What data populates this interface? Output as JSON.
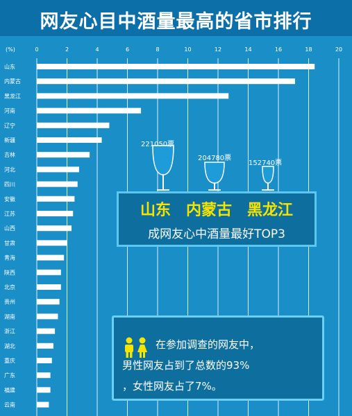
{
  "title": "网友心目中酒量最高的省市排行",
  "chart_data": {
    "type": "bar",
    "orientation": "horizontal",
    "unit_label": "(%)",
    "xlim": [
      0,
      20
    ],
    "ticks": [
      0,
      2,
      4,
      6,
      8,
      10,
      12,
      14,
      16,
      18,
      20
    ],
    "grid": true,
    "categories": [
      "山东",
      "内蒙古",
      "黑龙江",
      "河南",
      "辽宁",
      "新疆",
      "吉林",
      "河北",
      "四川",
      "安徽",
      "江苏",
      "山西",
      "甘肃",
      "青海",
      "陕西",
      "北京",
      "贵州",
      "湖南",
      "浙江",
      "湖北",
      "重庆",
      "广东",
      "福建",
      "云南"
    ],
    "values": [
      18.4,
      17.1,
      12.7,
      6.9,
      4.8,
      4.3,
      3.5,
      2.8,
      2.7,
      2.5,
      2.4,
      2.3,
      2.0,
      1.8,
      1.6,
      1.6,
      1.5,
      1.4,
      1.2,
      1.1,
      1.0,
      0.9,
      0.9,
      0.8
    ]
  },
  "top3": {
    "names": "山东　内蒙古　黑龙江",
    "subtitle": "成网友心中酒量最好TOP3",
    "votes": [
      "221050票",
      "204780票",
      "152740票"
    ],
    "glass_color": "#1e9cd9"
  },
  "gender": {
    "line1": "在参加调查的网友中，",
    "line2": "男性网友占到了总数的93%",
    "line3": "，女性网友占了7%。",
    "icon": "people-icon"
  }
}
